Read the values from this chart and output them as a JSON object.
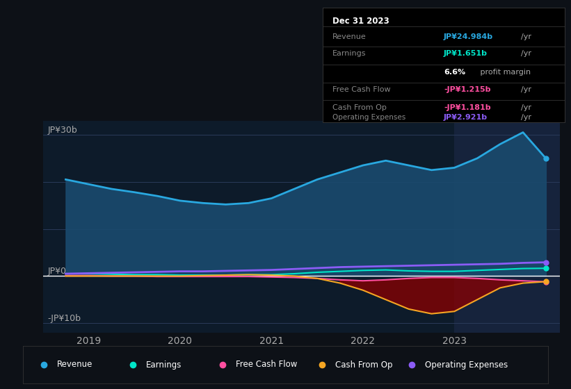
{
  "background_color": "#0d1117",
  "plot_bg_color": "#0d1b2a",
  "highlight_bg_color": "#1a2744",
  "y_label_30": "JP¥30b",
  "y_label_0": "JP¥0",
  "y_label_n10": "-JP¥10b",
  "ylim": [
    -12,
    33
  ],
  "xlim_start": 2018.5,
  "xlim_end": 2024.15,
  "x_ticks": [
    2019,
    2020,
    2021,
    2022,
    2023
  ],
  "highlight_x_start": 2023.0,
  "revenue_color": "#29a8e0",
  "revenue_fill_color": "#1a4a6e",
  "earnings_color": "#00e5c8",
  "fcf_color": "#ff4fa0",
  "cashfromop_color": "#f5a623",
  "opex_color": "#8b5cf6",
  "grid_color": "#2a3a5a",
  "zero_line_color": "#ffffff",
  "neg_fill_color": "#8b0000",
  "info_box_title": "Dec 31 2023",
  "info_revenue_label": "Revenue",
  "info_revenue_value": "JP¥24.984b",
  "info_earnings_label": "Earnings",
  "info_earnings_value": "JP¥1.651b",
  "info_margin_text": "6.6% profit margin",
  "info_fcf_label": "Free Cash Flow",
  "info_fcf_value": "-JP¥1.215b",
  "info_cashop_label": "Cash From Op",
  "info_cashop_value": "-JP¥1.181b",
  "info_opex_label": "Operating Expenses",
  "info_opex_value": "JP¥2.921b",
  "legend_items": [
    "Revenue",
    "Earnings",
    "Free Cash Flow",
    "Cash From Op",
    "Operating Expenses"
  ],
  "legend_colors": [
    "#29a8e0",
    "#00e5c8",
    "#ff4fa0",
    "#f5a623",
    "#8b5cf6"
  ],
  "revenue_x": [
    2018.75,
    2019.0,
    2019.25,
    2019.5,
    2019.75,
    2020.0,
    2020.25,
    2020.5,
    2020.75,
    2021.0,
    2021.25,
    2021.5,
    2021.75,
    2022.0,
    2022.25,
    2022.5,
    2022.75,
    2023.0,
    2023.25,
    2023.5,
    2023.75,
    2024.0
  ],
  "revenue_y": [
    20.5,
    19.5,
    18.5,
    17.8,
    17.0,
    16.0,
    15.5,
    15.2,
    15.5,
    16.5,
    18.5,
    20.5,
    22.0,
    23.5,
    24.5,
    23.5,
    22.5,
    23.0,
    25.0,
    28.0,
    30.5,
    24.984
  ],
  "earnings_x": [
    2018.75,
    2019.0,
    2019.25,
    2019.5,
    2019.75,
    2020.0,
    2020.25,
    2020.5,
    2020.75,
    2021.0,
    2021.25,
    2021.5,
    2021.75,
    2022.0,
    2022.25,
    2022.5,
    2022.75,
    2023.0,
    2023.25,
    2023.5,
    2023.75,
    2024.0
  ],
  "earnings_y": [
    0.5,
    0.5,
    0.4,
    0.3,
    0.3,
    0.2,
    0.2,
    0.2,
    0.3,
    0.3,
    0.5,
    0.8,
    1.0,
    1.2,
    1.3,
    1.1,
    1.0,
    1.0,
    1.2,
    1.4,
    1.6,
    1.651
  ],
  "fcf_x": [
    2018.75,
    2019.0,
    2019.25,
    2019.5,
    2019.75,
    2020.0,
    2020.25,
    2020.5,
    2020.75,
    2021.0,
    2021.25,
    2021.5,
    2021.75,
    2022.0,
    2022.25,
    2022.5,
    2022.75,
    2023.0,
    2023.25,
    2023.5,
    2023.75,
    2024.0
  ],
  "fcf_y": [
    0.1,
    0.1,
    0.0,
    0.0,
    -0.1,
    -0.1,
    -0.1,
    -0.1,
    -0.1,
    -0.2,
    -0.3,
    -0.5,
    -0.8,
    -1.0,
    -0.8,
    -0.5,
    -0.3,
    -0.3,
    -0.5,
    -0.8,
    -1.0,
    -1.215
  ],
  "cashop_x": [
    2018.75,
    2019.0,
    2019.25,
    2019.5,
    2019.75,
    2020.0,
    2020.25,
    2020.5,
    2020.75,
    2021.0,
    2021.25,
    2021.5,
    2021.75,
    2022.0,
    2022.25,
    2022.5,
    2022.75,
    2023.0,
    2023.25,
    2023.5,
    2023.75,
    2024.0
  ],
  "cashop_y": [
    0.0,
    0.0,
    0.0,
    0.0,
    0.0,
    0.0,
    0.1,
    0.2,
    0.3,
    0.2,
    0.0,
    -0.5,
    -1.5,
    -3.0,
    -5.0,
    -7.0,
    -8.0,
    -7.5,
    -5.0,
    -2.5,
    -1.5,
    -1.181
  ],
  "opex_x": [
    2018.75,
    2019.0,
    2019.25,
    2019.5,
    2019.75,
    2020.0,
    2020.25,
    2020.5,
    2020.75,
    2021.0,
    2021.25,
    2021.5,
    2021.75,
    2022.0,
    2022.25,
    2022.5,
    2022.75,
    2023.0,
    2023.25,
    2023.5,
    2023.75,
    2024.0
  ],
  "opex_y": [
    0.5,
    0.6,
    0.7,
    0.8,
    0.9,
    1.0,
    1.0,
    1.1,
    1.2,
    1.3,
    1.5,
    1.7,
    1.9,
    2.0,
    2.1,
    2.2,
    2.3,
    2.4,
    2.5,
    2.6,
    2.8,
    2.921
  ]
}
